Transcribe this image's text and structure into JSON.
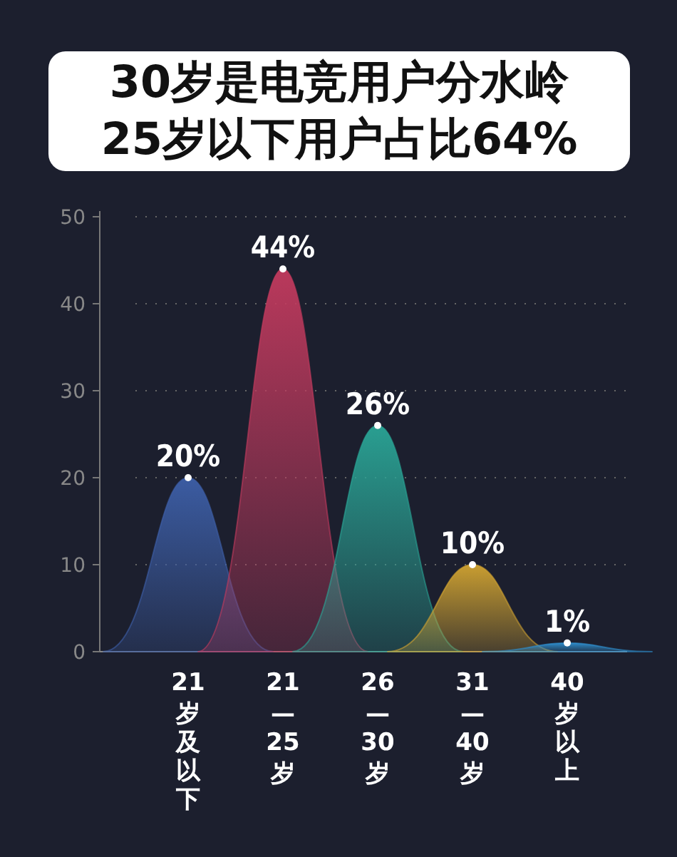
{
  "chart_data": {
    "type": "area",
    "title": "30岁是电竞用户分水岭",
    "subtitle": "25岁以下用户占比64%",
    "categories": [
      "21岁及以下",
      "21—25岁",
      "26—30岁",
      "31—40岁",
      "40岁以上"
    ],
    "values": [
      20,
      44,
      26,
      10,
      1
    ],
    "colors": [
      "#3d5fa8",
      "#c23a5e",
      "#2aa596",
      "#d2a431",
      "#2f8fcf"
    ],
    "value_labels": [
      "20%",
      "44%",
      "26%",
      "10%",
      "1%"
    ],
    "ylim": [
      0,
      50
    ],
    "yticks": [
      0,
      10,
      20,
      30,
      40,
      50
    ],
    "grid": "y",
    "marker": "circle"
  }
}
